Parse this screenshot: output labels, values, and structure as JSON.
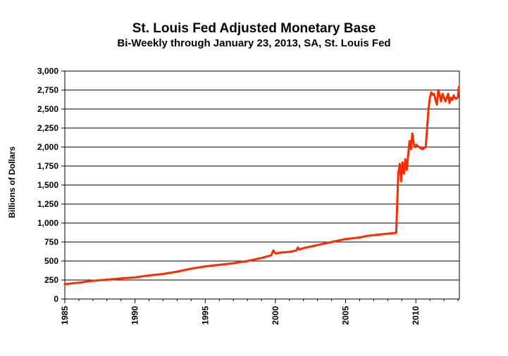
{
  "chart_data": {
    "type": "line",
    "title": "St. Louis Fed Adjusted Monetary Base",
    "subtitle": "Bi-Weekly through January 23, 2013, SA, St. Louis Fed",
    "xlabel": "",
    "ylabel": "Billions of Dollars",
    "xlim": [
      1985,
      2013.1
    ],
    "ylim": [
      0,
      3000
    ],
    "x_ticks": [
      "1985",
      "1990",
      "1995",
      "2000",
      "2005",
      "2010"
    ],
    "y_ticks": [
      "0",
      "250",
      "500",
      "750",
      "1,000",
      "1,250",
      "1,500",
      "1,750",
      "2,000",
      "2,250",
      "2,500",
      "2,750",
      "3,000"
    ],
    "grid": "horizontal",
    "series_color": "#ff2a00",
    "series": [
      {
        "x": [
          1985.0,
          1986.0,
          1987.0,
          1988.0,
          1989.0,
          1990.0,
          1991.0,
          1992.0,
          1993.0,
          1994.0,
          1995.0,
          1996.0,
          1997.0,
          1998.0,
          1999.0,
          1999.7,
          1999.85,
          2000.0,
          2000.3,
          2001.0,
          2001.5,
          2001.6,
          2001.7,
          2002.0,
          2003.0,
          2004.0,
          2005.0,
          2006.0,
          2006.5,
          2007.0,
          2008.0,
          2008.6,
          2008.75,
          2008.85,
          2008.95,
          2009.05,
          2009.15,
          2009.25,
          2009.35,
          2009.45,
          2009.55,
          2009.65,
          2009.75,
          2009.85,
          2009.95,
          2010.05,
          2010.15,
          2010.25,
          2010.35,
          2010.5,
          2010.7,
          2010.9,
          2011.0,
          2011.1,
          2011.2,
          2011.3,
          2011.4,
          2011.5,
          2011.6,
          2011.7,
          2011.8,
          2011.9,
          2012.0,
          2012.1,
          2012.2,
          2012.3,
          2012.4,
          2012.5,
          2012.6,
          2012.7,
          2012.8,
          2012.9,
          2013.0,
          2013.06
        ],
        "values": [
          195,
          215,
          240,
          255,
          270,
          285,
          310,
          330,
          360,
          400,
          430,
          450,
          470,
          500,
          540,
          575,
          640,
          600,
          610,
          620,
          640,
          680,
          650,
          670,
          710,
          750,
          790,
          810,
          830,
          840,
          860,
          870,
          1650,
          1780,
          1550,
          1800,
          1650,
          1840,
          1700,
          1900,
          2080,
          1970,
          2180,
          2050,
          2000,
          2030,
          2010,
          2000,
          1980,
          1975,
          2000,
          2500,
          2650,
          2720,
          2690,
          2700,
          2620,
          2560,
          2750,
          2680,
          2600,
          2700,
          2650,
          2600,
          2650,
          2700,
          2580,
          2650,
          2620,
          2680,
          2640,
          2640,
          2660,
          2790
        ]
      }
    ]
  }
}
